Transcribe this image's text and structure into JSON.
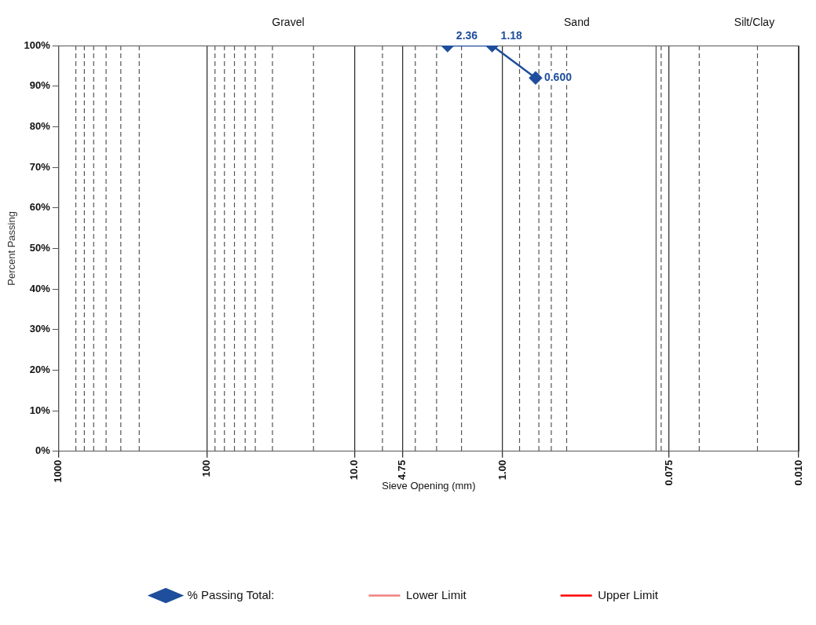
{
  "chart_data": {
    "type": "line",
    "xlabel": "Sieve Opening (mm)",
    "ylabel": "Percent Passing",
    "log": "x",
    "xlim": [
      1000,
      0.01
    ],
    "xticks": [
      1000,
      100,
      {
        "value": 10,
        "label": "10.0"
      },
      4.75,
      {
        "value": 1,
        "label": "1.00"
      },
      0.075,
      {
        "value": 0.01,
        "label": "0.010"
      }
    ],
    "ylim": [
      0,
      100
    ],
    "yticks": [
      {
        "value": 0,
        "label": "0%"
      },
      {
        "value": 10,
        "label": "10%"
      },
      {
        "value": 20,
        "label": "20%"
      },
      {
        "value": 30,
        "label": "30%"
      },
      {
        "value": 40,
        "label": "40%"
      },
      {
        "value": 50,
        "label": "50%"
      },
      {
        "value": 60,
        "label": "60%"
      },
      {
        "value": 70,
        "label": "70%"
      },
      {
        "value": 80,
        "label": "80%"
      },
      {
        "value": 90,
        "label": "90%"
      },
      {
        "value": 100,
        "label": "100%"
      }
    ],
    "grid": "x",
    "legend": "bottom",
    "marker": "diamond",
    "line_style": "solid",
    "annotations": [
      "Gravel",
      "Sand",
      "Silt/Clay",
      {
        "text": "2.36",
        "x": 2.36,
        "y": 100
      },
      {
        "text": "1.18",
        "x": 1.18,
        "y": 100
      },
      {
        "text": "0.600",
        "x": 0.6,
        "y": 92
      }
    ],
    "ref_lines": [
      {
        "axis": "x",
        "value": 767,
        "color": "#555555",
        "line_style": "dashed"
      },
      {
        "axis": "x",
        "value": 672,
        "color": "#555555",
        "line_style": "dashed"
      },
      {
        "axis": "x",
        "value": 581,
        "color": "#555555",
        "line_style": "dashed"
      },
      {
        "axis": "x",
        "value": 479,
        "color": "#555555",
        "line_style": "dashed"
      },
      {
        "axis": "x",
        "value": 381,
        "color": "#555555",
        "line_style": "dashed"
      },
      {
        "axis": "x",
        "value": 286,
        "color": "#555555",
        "line_style": "dashed"
      },
      {
        "axis": "x",
        "value": 88,
        "color": "#555555",
        "line_style": "dashed"
      },
      {
        "axis": "x",
        "value": 76,
        "color": "#555555",
        "line_style": "dashed"
      },
      {
        "axis": "x",
        "value": 65,
        "color": "#555555",
        "line_style": "dashed"
      },
      {
        "axis": "x",
        "value": 55,
        "color": "#555555",
        "line_style": "dashed"
      },
      {
        "axis": "x",
        "value": 47,
        "color": "#555555",
        "line_style": "dashed"
      },
      {
        "axis": "x",
        "value": 36,
        "color": "#555555",
        "line_style": "dashed"
      },
      {
        "axis": "x",
        "value": 19,
        "color": "#555555",
        "line_style": "dashed"
      },
      {
        "axis": "x",
        "value": 6.5,
        "color": "#555555",
        "line_style": "dashed"
      },
      {
        "axis": "x",
        "value": 3.9,
        "color": "#555555",
        "line_style": "dashed"
      },
      {
        "axis": "x",
        "value": 2.8,
        "color": "#555555",
        "line_style": "dashed"
      },
      {
        "axis": "x",
        "value": 1.9,
        "color": "#555555",
        "line_style": "dashed"
      },
      {
        "axis": "x",
        "value": 0.77,
        "color": "#555555",
        "line_style": "dashed"
      },
      {
        "axis": "x",
        "value": 0.57,
        "color": "#555555",
        "line_style": "dashed"
      },
      {
        "axis": "x",
        "value": 0.47,
        "color": "#555555",
        "line_style": "dashed"
      },
      {
        "axis": "x",
        "value": 0.37,
        "color": "#555555",
        "line_style": "dashed"
      },
      {
        "axis": "x",
        "value": 0.092,
        "color": "#555555",
        "line_style": "solid"
      },
      {
        "axis": "x",
        "value": 0.085,
        "color": "#555555",
        "line_style": "dashed"
      },
      {
        "axis": "x",
        "value": 0.047,
        "color": "#555555",
        "line_style": "dashed"
      },
      {
        "axis": "x",
        "value": 0.019,
        "color": "#555555",
        "line_style": "dashed"
      }
    ],
    "series": [
      {
        "name": "% Passing Total:",
        "color": "#1f4e9c",
        "x": [
          2.36,
          1.18,
          0.6
        ],
        "values": [
          100,
          100,
          92
        ]
      },
      {
        "name": "Lower Limit",
        "color": "#f08080"
      },
      {
        "name": "Upper Limit",
        "color": "#ff0000"
      }
    ]
  }
}
